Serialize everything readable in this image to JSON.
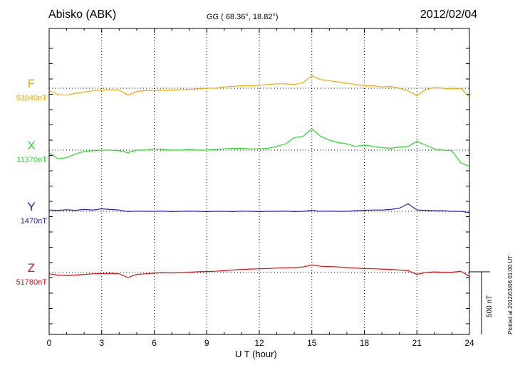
{
  "header": {
    "station": "Abisko (ABK)",
    "coords": "GG ( 68.36°,  18.82°)",
    "date": "2012/02/04"
  },
  "footer": {
    "plotted": "Plotted at 2012/03/06 01:00 UT",
    "scale_label": "500 nT"
  },
  "chart_data": {
    "type": "line",
    "title": "Abisko (ABK)",
    "xlabel": "U T (hour)",
    "ylabel": "",
    "xlim": [
      0,
      24
    ],
    "x_ticks": [
      "0",
      "3",
      "6",
      "9",
      "12",
      "15",
      "18",
      "21",
      "24"
    ],
    "grid": true,
    "scale_bar_nT": 500,
    "x": [
      0,
      0.5,
      1,
      1.5,
      2,
      2.5,
      3,
      3.5,
      4,
      4.5,
      5,
      5.5,
      6,
      6.5,
      7,
      7.5,
      8,
      8.5,
      9,
      9.5,
      10,
      10.5,
      11,
      11.5,
      12,
      12.5,
      13,
      13.5,
      14,
      14.5,
      15,
      15.5,
      16,
      16.5,
      17,
      17.5,
      18,
      18.5,
      19,
      19.5,
      20,
      20.5,
      21,
      21.5,
      22,
      22.5,
      23,
      23.5,
      24
    ],
    "series": [
      {
        "name": "F",
        "baseline_label": "53040nT",
        "baseline": 53040,
        "color": "#f5a800",
        "values": [
          53020,
          52990,
          52985,
          53000,
          53010,
          53020,
          53025,
          53030,
          53025,
          52985,
          53015,
          53020,
          53020,
          53025,
          53025,
          53030,
          53030,
          53035,
          53040,
          53040,
          53050,
          53055,
          53060,
          53060,
          53065,
          53070,
          53075,
          53075,
          53070,
          53085,
          53140,
          53110,
          53100,
          53090,
          53080,
          53070,
          53060,
          53060,
          53050,
          53055,
          53040,
          53020,
          52980,
          53030,
          53045,
          53040,
          53035,
          53040,
          52970
        ]
      },
      {
        "name": "X",
        "baseline_label": "11370nT",
        "baseline": 11370,
        "color": "#22dd22",
        "values": [
          11350,
          11300,
          11310,
          11340,
          11360,
          11365,
          11370,
          11370,
          11365,
          11350,
          11370,
          11370,
          11380,
          11375,
          11370,
          11370,
          11375,
          11370,
          11370,
          11375,
          11380,
          11385,
          11385,
          11380,
          11380,
          11385,
          11400,
          11420,
          11470,
          11480,
          11540,
          11480,
          11450,
          11430,
          11420,
          11400,
          11410,
          11400,
          11390,
          11385,
          11395,
          11400,
          11440,
          11410,
          11380,
          11370,
          11365,
          11270,
          11240
        ]
      },
      {
        "name": "Y",
        "baseline_label": "1470nT",
        "baseline": 1470,
        "color": "#1a1acc",
        "values": [
          1480,
          1478,
          1482,
          1478,
          1485,
          1480,
          1490,
          1485,
          1480,
          1468,
          1472,
          1470,
          1470,
          1472,
          1468,
          1470,
          1472,
          1470,
          1468,
          1470,
          1470,
          1468,
          1472,
          1470,
          1468,
          1470,
          1470,
          1472,
          1468,
          1470,
          1478,
          1470,
          1472,
          1470,
          1470,
          1475,
          1478,
          1480,
          1480,
          1485,
          1495,
          1530,
          1480,
          1478,
          1475,
          1475,
          1470,
          1470,
          1460
        ]
      },
      {
        "name": "Z",
        "baseline_label": "51780nT",
        "baseline": 51780,
        "color": "#dd1111",
        "values": [
          51770,
          51760,
          51755,
          51760,
          51765,
          51770,
          51772,
          51774,
          51770,
          51740,
          51765,
          51770,
          51775,
          51778,
          51776,
          51778,
          51782,
          51786,
          51788,
          51790,
          51795,
          51800,
          51805,
          51808,
          51810,
          51812,
          51815,
          51818,
          51820,
          51825,
          51840,
          51830,
          51828,
          51825,
          51820,
          51815,
          51812,
          51810,
          51808,
          51805,
          51800,
          51795,
          51765,
          51780,
          51785,
          51782,
          51782,
          51790,
          51750
        ]
      }
    ]
  }
}
